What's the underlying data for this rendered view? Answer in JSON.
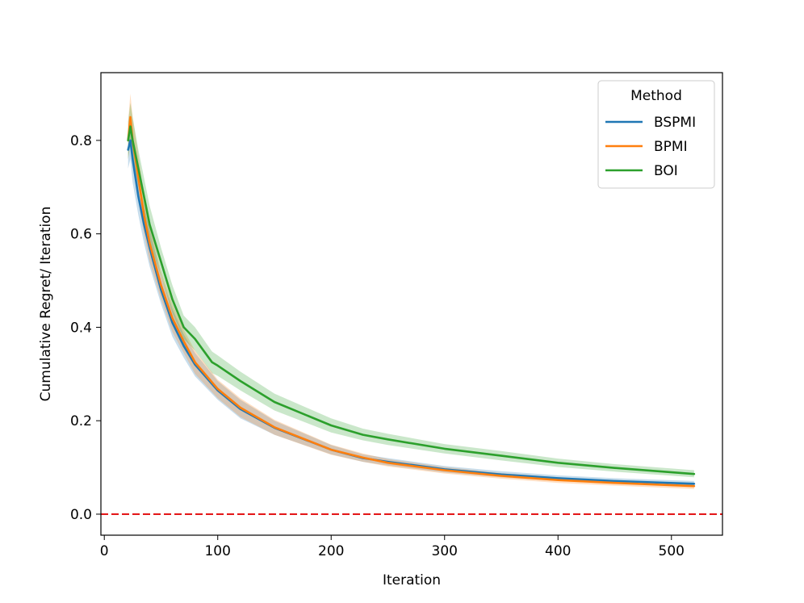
{
  "chart_data": {
    "type": "line",
    "title": "",
    "xlabel": "Iteration",
    "ylabel": "Cumulative Regret/ Iteration",
    "xlim": [
      -3,
      545
    ],
    "ylim": [
      -0.045,
      0.945
    ],
    "xticks": [
      0,
      100,
      200,
      300,
      400,
      500
    ],
    "xtick_labels": [
      "0",
      "100",
      "200",
      "300",
      "400",
      "500"
    ],
    "yticks": [
      0.0,
      0.2,
      0.4,
      0.6,
      0.8
    ],
    "ytick_labels": [
      "0.0",
      "0.2",
      "0.4",
      "0.6",
      "0.8"
    ],
    "grid": false,
    "legend": {
      "title": "Method",
      "placement": "top-right"
    },
    "reference_line": {
      "y": 0.0,
      "color": "#e41a1c",
      "style": "dashed"
    },
    "series": [
      {
        "name": "BSPMI",
        "color": "#1f77b4",
        "x": [
          21,
          23,
          25,
          30,
          35,
          40,
          50,
          60,
          70,
          80,
          100,
          120,
          150,
          200,
          228,
          250,
          300,
          350,
          400,
          450,
          520
        ],
        "y": [
          0.78,
          0.8,
          0.76,
          0.68,
          0.62,
          0.57,
          0.48,
          0.41,
          0.36,
          0.32,
          0.265,
          0.225,
          0.185,
          0.138,
          0.12,
          0.112,
          0.096,
          0.085,
          0.077,
          0.071,
          0.065
        ],
        "lower": [
          0.74,
          0.76,
          0.71,
          0.64,
          0.58,
          0.53,
          0.45,
          0.38,
          0.335,
          0.295,
          0.245,
          0.205,
          0.17,
          0.128,
          0.112,
          0.104,
          0.089,
          0.079,
          0.071,
          0.065,
          0.059
        ],
        "upper": [
          0.82,
          0.84,
          0.8,
          0.72,
          0.66,
          0.61,
          0.51,
          0.44,
          0.385,
          0.345,
          0.285,
          0.245,
          0.2,
          0.148,
          0.128,
          0.12,
          0.103,
          0.092,
          0.083,
          0.077,
          0.071
        ]
      },
      {
        "name": "BPMI",
        "color": "#ff7f0e",
        "x": [
          21,
          23,
          25,
          30,
          35,
          40,
          50,
          60,
          70,
          80,
          100,
          120,
          150,
          200,
          228,
          250,
          300,
          350,
          400,
          450,
          520
        ],
        "y": [
          0.8,
          0.85,
          0.8,
          0.72,
          0.64,
          0.58,
          0.49,
          0.42,
          0.37,
          0.325,
          0.268,
          0.228,
          0.186,
          0.138,
          0.121,
          0.11,
          0.094,
          0.082,
          0.073,
          0.067,
          0.06
        ],
        "lower": [
          0.76,
          0.8,
          0.75,
          0.67,
          0.6,
          0.54,
          0.46,
          0.39,
          0.345,
          0.3,
          0.248,
          0.208,
          0.17,
          0.127,
          0.112,
          0.102,
          0.087,
          0.076,
          0.067,
          0.061,
          0.054
        ],
        "upper": [
          0.84,
          0.9,
          0.85,
          0.77,
          0.68,
          0.62,
          0.52,
          0.45,
          0.395,
          0.35,
          0.288,
          0.248,
          0.202,
          0.149,
          0.13,
          0.118,
          0.101,
          0.088,
          0.079,
          0.073,
          0.066
        ]
      },
      {
        "name": "BOI",
        "color": "#2ca02c",
        "x": [
          21,
          23,
          25,
          30,
          35,
          40,
          50,
          60,
          70,
          80,
          95,
          100,
          120,
          150,
          200,
          228,
          250,
          300,
          350,
          400,
          450,
          520
        ],
        "y": [
          0.8,
          0.83,
          0.8,
          0.74,
          0.68,
          0.62,
          0.54,
          0.46,
          0.4,
          0.375,
          0.325,
          0.318,
          0.285,
          0.24,
          0.19,
          0.17,
          0.16,
          0.14,
          0.125,
          0.11,
          0.099,
          0.086
        ],
        "lower": [
          0.76,
          0.79,
          0.76,
          0.7,
          0.64,
          0.58,
          0.51,
          0.43,
          0.375,
          0.35,
          0.302,
          0.296,
          0.265,
          0.222,
          0.175,
          0.158,
          0.148,
          0.13,
          0.115,
          0.101,
          0.091,
          0.079
        ],
        "upper": [
          0.84,
          0.88,
          0.85,
          0.78,
          0.72,
          0.66,
          0.57,
          0.49,
          0.425,
          0.4,
          0.348,
          0.34,
          0.305,
          0.258,
          0.205,
          0.183,
          0.172,
          0.15,
          0.135,
          0.119,
          0.107,
          0.094
        ]
      }
    ]
  }
}
